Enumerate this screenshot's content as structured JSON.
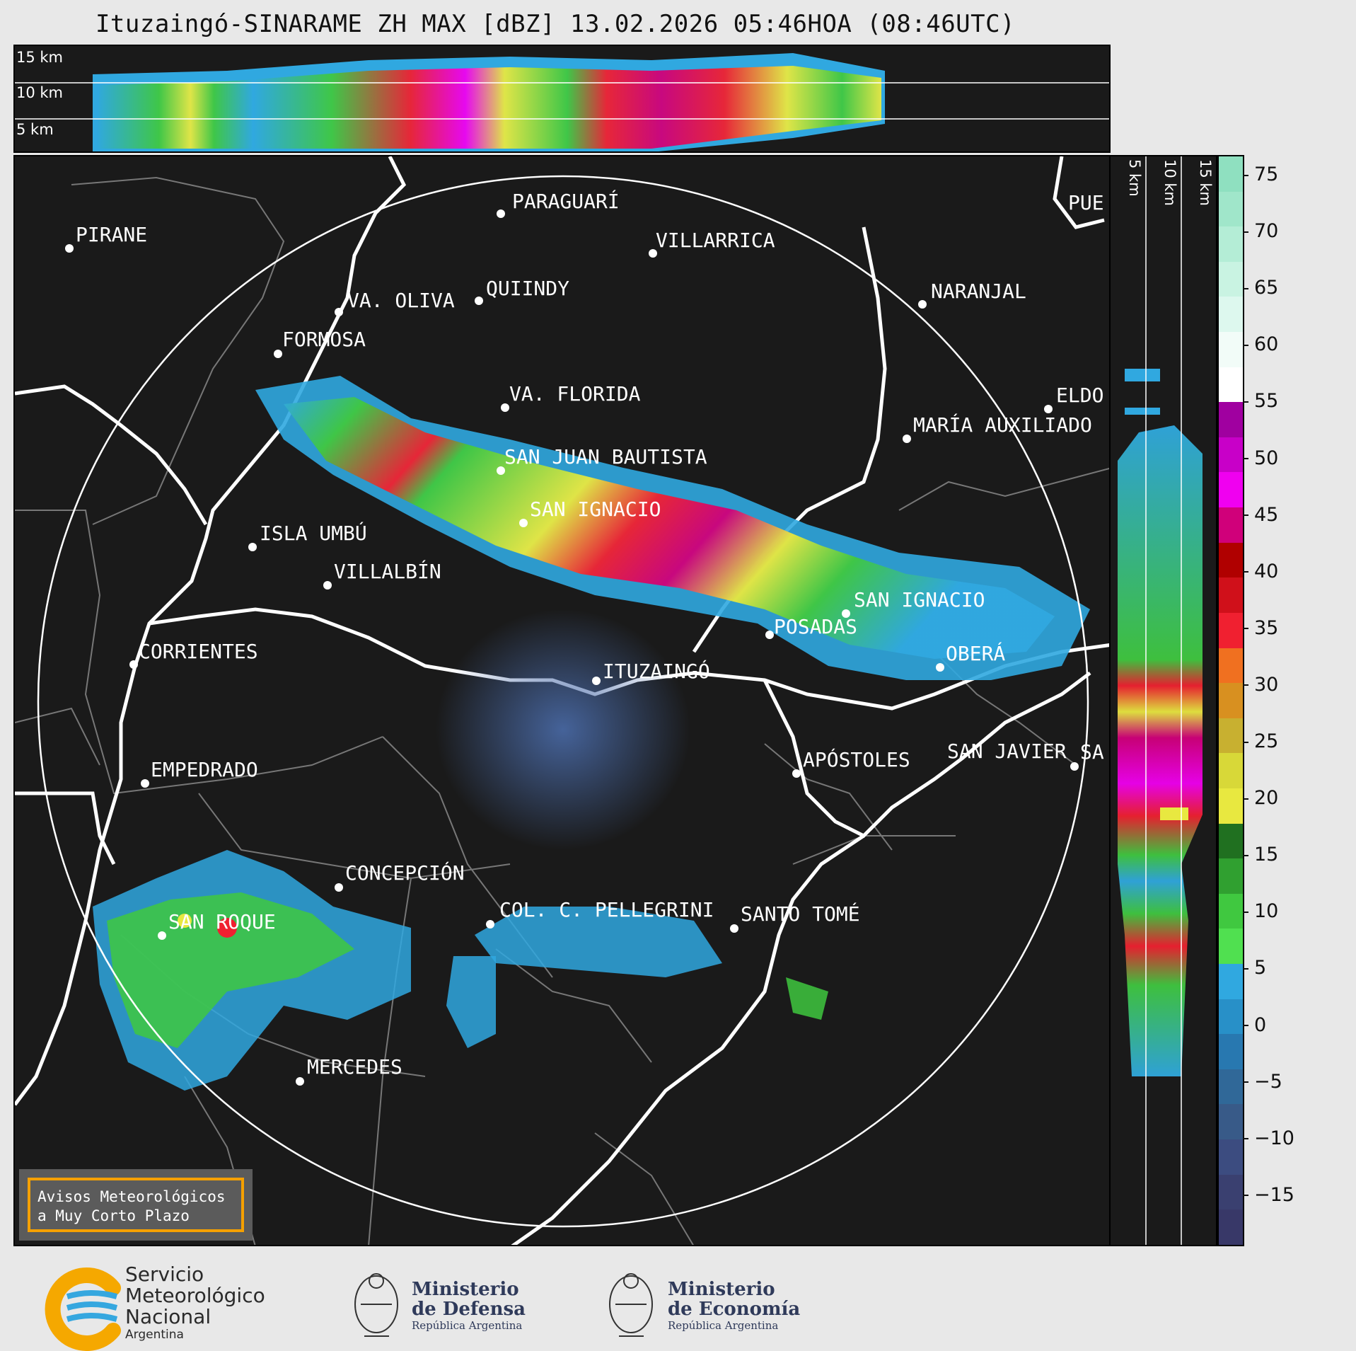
{
  "title": "Ituzaingó-SINARAME ZH MAX [dBZ] 13.02.2026 05:46HOA (08:46UTC)",
  "top_section": {
    "height_labels": [
      "15 km",
      "10 km",
      "5 km"
    ]
  },
  "side_section": {
    "height_labels": [
      "5 km",
      "10 km",
      "15 km"
    ]
  },
  "colorbar": {
    "ticks": [
      "75",
      "70",
      "65",
      "60",
      "55",
      "50",
      "45",
      "40",
      "35",
      "30",
      "25",
      "20",
      "15",
      "10",
      "5",
      "0",
      "−5",
      "−10",
      "−15"
    ],
    "colors": [
      "#8fe0c0",
      "#a0e6ca",
      "#b4edd6",
      "#c9f3e2",
      "#ddf8ee",
      "#f2fcf8",
      "#ffffff",
      "#a000a0",
      "#c800c8",
      "#f000f0",
      "#d0007a",
      "#b00000",
      "#d0101a",
      "#f02030",
      "#f07020",
      "#d89020",
      "#c8b030",
      "#d8d838",
      "#e8e840",
      "#207020",
      "#30a030",
      "#40c840",
      "#50e050",
      "#30a8e0",
      "#2890c8",
      "#2878b0",
      "#306898",
      "#385a88",
      "#3c4c80",
      "#3a4070",
      "#383868"
    ]
  },
  "cities": [
    {
      "name": "PARAGUARÍ"
    },
    {
      "name": "PIRANE"
    },
    {
      "name": "VILLARRICA"
    },
    {
      "name": "QUIINDY"
    },
    {
      "name": "VA. OLIVA"
    },
    {
      "name": "NARANJAL"
    },
    {
      "name": "FORMOSA"
    },
    {
      "name": "PUE"
    },
    {
      "name": "VA. FLORIDA"
    },
    {
      "name": "ELDO"
    },
    {
      "name": "MARÍA AUXILIADO"
    },
    {
      "name": "SAN JUAN BAUTISTA"
    },
    {
      "name": "SAN IGNACIO"
    },
    {
      "name": "ISLA UMBÚ"
    },
    {
      "name": "VILLALBÍN"
    },
    {
      "name": "SAN IGNACIO"
    },
    {
      "name": "POSADAS"
    },
    {
      "name": "CORRIENTES"
    },
    {
      "name": "ITUZAINGÓ"
    },
    {
      "name": "OBERÁ"
    },
    {
      "name": "EMPEDRADO"
    },
    {
      "name": "APÓSTOLES"
    },
    {
      "name": "SAN JAVIER"
    },
    {
      "name": "SA"
    },
    {
      "name": "CONCEPCIÓN"
    },
    {
      "name": "COL. C. PELLEGRINI"
    },
    {
      "name": "SANTO TOMÉ"
    },
    {
      "name": "SAN ROQUE"
    },
    {
      "name": "MERCEDES"
    }
  ],
  "warning": {
    "line1": "Avisos Meteorológicos",
    "line2": "a Muy Corto Plazo"
  },
  "footer": {
    "smn": {
      "line1": "Servicio",
      "line2": "Meteorológico",
      "line3": "Nacional",
      "country": "Argentina"
    },
    "defensa": {
      "line1": "Ministerio",
      "line2": "de Defensa",
      "sub": "República Argentina"
    },
    "economia": {
      "line1": "Ministerio",
      "line2": "de Economía",
      "sub": "República Argentina"
    }
  }
}
